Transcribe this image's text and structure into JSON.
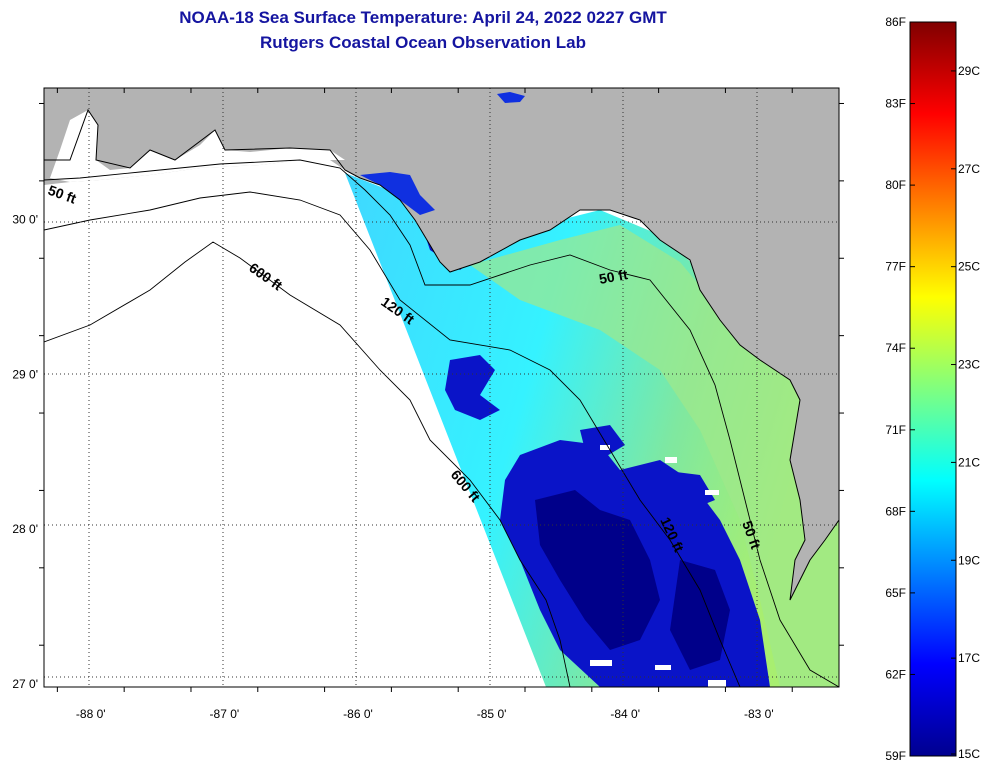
{
  "title": {
    "line1": "NOAA-18 Sea Surface Temperature:  April 24, 2022 0227 GMT",
    "line2": "Rutgers Coastal Ocean Observation Lab"
  },
  "map": {
    "lon_range": [
      -88.35,
      -82.4
    ],
    "lat_range": [
      26.98,
      30.85
    ],
    "lon_ticks": [
      {
        "value": -88,
        "label": "-88 0'"
      },
      {
        "value": -87,
        "label": "-87 0'"
      },
      {
        "value": -86,
        "label": "-86 0'"
      },
      {
        "value": -85,
        "label": "-85 0'"
      },
      {
        "value": -84,
        "label": "-84 0'"
      },
      {
        "value": -83,
        "label": "-83 0'"
      }
    ],
    "lat_ticks": [
      {
        "value": 27,
        "label": "27 0'"
      },
      {
        "value": 28,
        "label": "28 0'"
      },
      {
        "value": 29,
        "label": "29 0'"
      },
      {
        "value": 30,
        "label": "30 0'"
      }
    ],
    "grid": "dotted",
    "colors": {
      "land": "#b3b3b3",
      "no_data": "#ffffff",
      "coastline": "#000000",
      "contour": "#000000"
    },
    "contour_labels": [
      "50 ft",
      "600 ft",
      "120 ft",
      "50 ft",
      "600 ft",
      "120 ft",
      "50 ft"
    ]
  },
  "colorbar": {
    "fahrenheit_labels": [
      "86F",
      "83F",
      "80F",
      "77F",
      "74F",
      "71F",
      "68F",
      "65F",
      "62F",
      "59F"
    ],
    "celsius_labels": [
      "29C",
      "27C",
      "25C",
      "23C",
      "21C",
      "19C",
      "17C",
      "15C"
    ],
    "colormap": "jet",
    "range_c": [
      15,
      30
    ],
    "stops": [
      "#00008f",
      "#0000ff",
      "#00ffff",
      "#ffff00",
      "#ff0000",
      "#800000"
    ]
  }
}
